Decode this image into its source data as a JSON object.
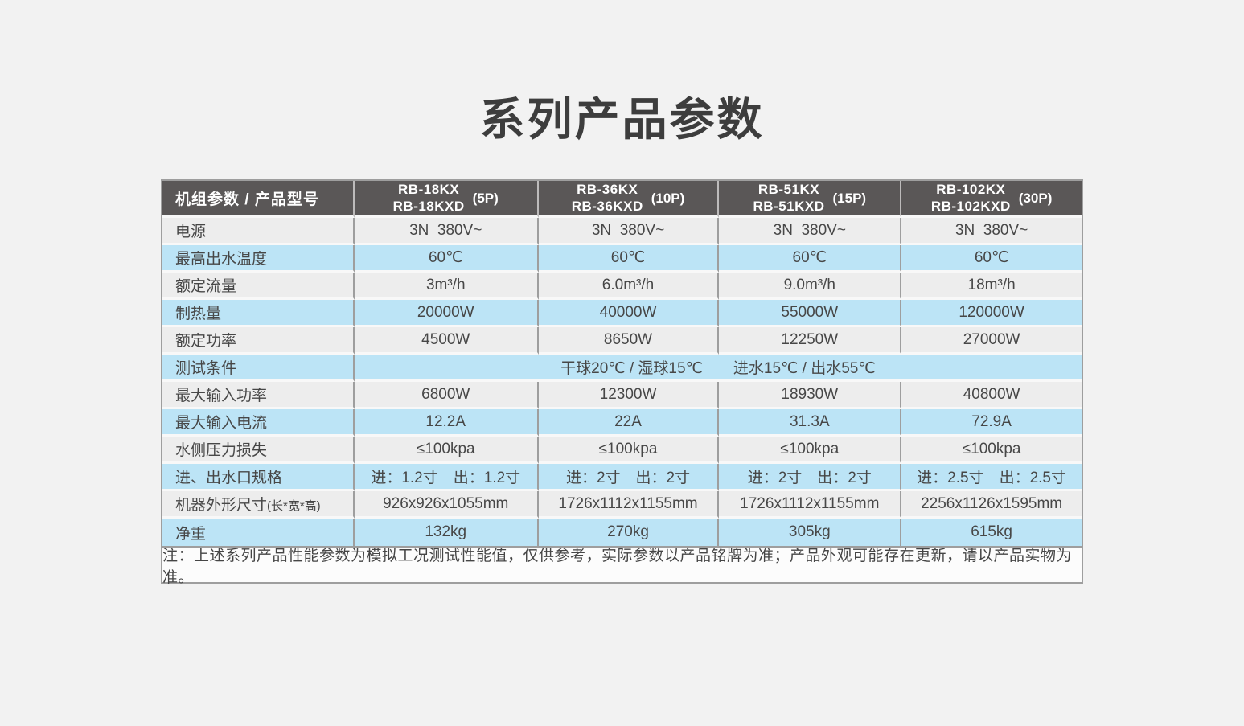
{
  "page": {
    "title": "系列产品参数"
  },
  "colors": {
    "page_background": "#F2F2F2",
    "header_background": "#5A5757",
    "header_text": "#FFFFFF",
    "row_gray": "#EDEDED",
    "row_blue": "#BCE4F6",
    "border_gray": "#9E9E9E",
    "body_text": "#474747"
  },
  "table": {
    "header": {
      "label": "机组参数 / 产品型号",
      "products": [
        {
          "line1": "RB-18KX",
          "line2": "RB-18KXD",
          "power": "(5P)"
        },
        {
          "line1": "RB-36KX",
          "line2": "RB-36KXD",
          "power": "(10P)"
        },
        {
          "line1": "RB-51KX",
          "line2": "RB-51KXD",
          "power": "(15P)"
        },
        {
          "line1": "RB-102KX",
          "line2": "RB-102KXD",
          "power": "(30P)"
        }
      ]
    },
    "rows": [
      {
        "label": "电源",
        "values": [
          "3N  380V~",
          "3N  380V~",
          "3N  380V~",
          "3N  380V~"
        ]
      },
      {
        "label": "最高出水温度",
        "values": [
          "60℃",
          "60℃",
          "60℃",
          "60℃"
        ]
      },
      {
        "label": "额定流量",
        "values": [
          "3m³/h",
          "6.0m³/h",
          "9.0m³/h",
          "18m³/h"
        ]
      },
      {
        "label": "制热量",
        "values": [
          "20000W",
          "40000W",
          "55000W",
          "120000W"
        ]
      },
      {
        "label": "额定功率",
        "values": [
          "4500W",
          "8650W",
          "12250W",
          "27000W"
        ]
      },
      {
        "label": "测试条件",
        "merged": "干球20℃ / 湿球15℃　　进水15℃ / 出水55℃"
      },
      {
        "label": "最大输入功率",
        "values": [
          "6800W",
          "12300W",
          "18930W",
          "40800W"
        ]
      },
      {
        "label": "最大输入电流",
        "values": [
          "12.2A",
          "22A",
          "31.3A",
          "72.9A"
        ]
      },
      {
        "label": "水侧压力损失",
        "values": [
          "≤100kpa",
          "≤100kpa",
          "≤100kpa",
          "≤100kpa"
        ]
      },
      {
        "label": "进、出水口规格",
        "values": [
          "进：1.2寸　出：1.2寸",
          "进：2寸　出：2寸",
          "进：2寸　出：2寸",
          "进：2.5寸　出：2.5寸"
        ]
      },
      {
        "label": "机器外形尺寸",
        "label_suffix": "(长*宽*高)",
        "values": [
          "926x926x1055mm",
          "1726x1112x1155mm",
          "1726x1112x1155mm",
          "2256x1126x1595mm"
        ]
      },
      {
        "label": "净重",
        "values": [
          "132kg",
          "270kg",
          "305kg",
          "615kg"
        ]
      }
    ],
    "note": "注：上述系列产品性能参数为模拟工况测试性能值，仅供参考，实际参数以产品铭牌为准；产品外观可能存在更新，请以产品实物为准。"
  }
}
